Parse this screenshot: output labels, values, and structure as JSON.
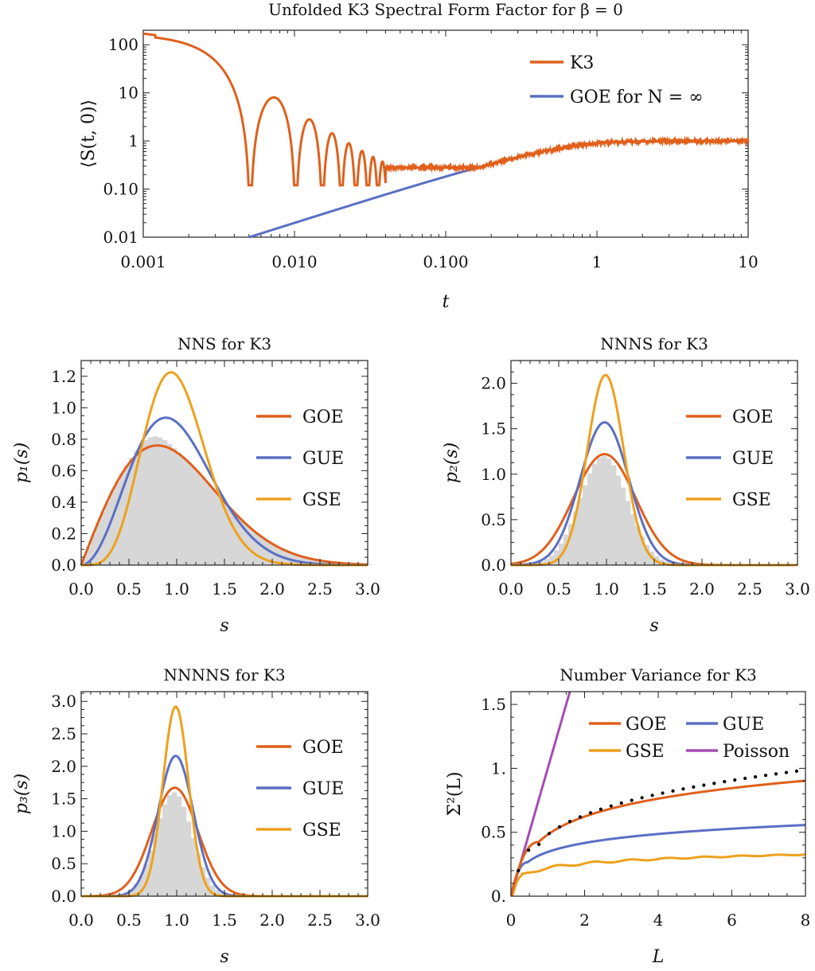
{
  "colors": {
    "orange": "#e0601c",
    "blue": "#5b6fc4",
    "gold": "#eda11c",
    "purple": "#a64cb4",
    "hist": "#d7d7d7",
    "dots": "#000000"
  },
  "chart_data": [
    {
      "id": "sff",
      "type": "line",
      "title": "Unfolded K3 Spectral Form Factor for β = 0",
      "xlabel": "t",
      "ylabel": "⟨S(t, 0)⟩",
      "xscale": "log",
      "yscale": "log",
      "xlim": [
        0.001,
        10
      ],
      "ylim": [
        0.01,
        200
      ],
      "xticks": [
        0.001,
        0.01,
        0.1,
        1,
        10
      ],
      "xtick_labels": [
        "0.001",
        "0.010",
        "0.100",
        "1",
        "10"
      ],
      "yticks": [
        0.01,
        0.1,
        1,
        10,
        100
      ],
      "ytick_labels": [
        "0.01",
        "0.10",
        "1",
        "10",
        "100"
      ],
      "legend_position": "top-right",
      "series": [
        {
          "name": "K3",
          "color": "#e0601c",
          "description": "decays from ~170 at t=0.001 with oscillation dips (0.005, 0.01, 0.015, 0.02, ...), reaches ~0.28 near t≈0.08 then follows GOE ramp and noisy plateau ≈1",
          "points": [
            [
              0.001,
              170
            ],
            [
              0.002,
              130
            ],
            [
              0.003,
              40
            ],
            [
              0.004,
              5
            ],
            [
              0.005,
              0.23
            ],
            [
              0.006,
              5
            ],
            [
              0.0072,
              9.5
            ],
            [
              0.009,
              5
            ],
            [
              0.0103,
              0.2
            ],
            [
              0.012,
              3
            ],
            [
              0.0135,
              4.5
            ],
            [
              0.015,
              2
            ],
            [
              0.0155,
              0.25
            ],
            [
              0.0175,
              2
            ],
            [
              0.0205,
              0.13
            ],
            [
              0.1,
              0.3
            ],
            [
              0.2,
              0.35
            ],
            [
              0.5,
              0.6
            ],
            [
              1,
              0.9
            ],
            [
              10,
              1.0
            ]
          ]
        },
        {
          "name": "GOE for N = ∞",
          "color": "#5b6fc4",
          "description": "GOE ramp-plateau form factor, starting at 0.01 near t=0.005",
          "points": [
            [
              0.005,
              0.01
            ],
            [
              0.01,
              0.02
            ],
            [
              0.05,
              0.09
            ],
            [
              0.1,
              0.17
            ],
            [
              0.3,
              0.42
            ],
            [
              0.6,
              0.7
            ],
            [
              1,
              0.87
            ],
            [
              2,
              0.95
            ],
            [
              10,
              1.0
            ]
          ]
        }
      ]
    },
    {
      "id": "nns",
      "type": "line",
      "title": "NNS for K3",
      "xlabel": "s",
      "ylabel": "p₁(s)",
      "xlim": [
        0,
        3
      ],
      "ylim": [
        0,
        1.3
      ],
      "xticks": [
        0,
        0.5,
        1,
        1.5,
        2,
        2.5,
        3
      ],
      "xtick_labels": [
        "0.0",
        "0.5",
        "1.0",
        "1.5",
        "2.0",
        "2.5",
        "3.0"
      ],
      "yticks": [
        0,
        0.2,
        0.4,
        0.6,
        0.8,
        1.0,
        1.2
      ],
      "ytick_labels": [
        "0.0",
        "0.2",
        "0.4",
        "0.6",
        "0.8",
        "1.0",
        "1.2"
      ],
      "legend_position": "right",
      "series": [
        {
          "name": "GOE",
          "color": "#e0601c",
          "values_at": "Wigner surmise β=1",
          "peak": [
            0.8,
            0.76
          ]
        },
        {
          "name": "GUE",
          "color": "#5b6fc4",
          "values_at": "Wigner surmise β=2",
          "peak": [
            0.89,
            0.94
          ]
        },
        {
          "name": "GSE",
          "color": "#eda11c",
          "values_at": "Wigner surmise β=4",
          "peak": [
            0.94,
            1.23
          ]
        }
      ],
      "histogram": {
        "color": "#d7d7d7",
        "description": "K3 level-spacing histogram, close to GOE"
      }
    },
    {
      "id": "nnns",
      "type": "line",
      "title": "NNNS for K3",
      "xlabel": "s",
      "ylabel": "p₂(s)",
      "xlim": [
        0,
        3
      ],
      "ylim": [
        0,
        2.25
      ],
      "xticks": [
        0,
        0.5,
        1,
        1.5,
        2,
        2.5,
        3
      ],
      "xtick_labels": [
        "0.0",
        "0.5",
        "1.0",
        "1.5",
        "2.0",
        "2.5",
        "3.0"
      ],
      "yticks": [
        0,
        0.5,
        1,
        1.5,
        2
      ],
      "ytick_labels": [
        "0.0",
        "0.5",
        "1.0",
        "1.5",
        "2.0"
      ],
      "legend_position": "right",
      "series": [
        {
          "name": "GOE",
          "color": "#e0601c",
          "peak": [
            0.98,
            1.22
          ]
        },
        {
          "name": "GUE",
          "color": "#5b6fc4",
          "peak": [
            0.98,
            1.57
          ]
        },
        {
          "name": "GSE",
          "color": "#eda11c",
          "peak": [
            0.99,
            2.09
          ]
        }
      ],
      "histogram": {
        "color": "#d7d7d7",
        "description": "K3 histogram close to GOE"
      }
    },
    {
      "id": "nnnns",
      "type": "line",
      "title": "NNNNS for K3",
      "xlabel": "s",
      "ylabel": "p₃(s)",
      "xlim": [
        0,
        3
      ],
      "ylim": [
        0,
        3.15
      ],
      "xticks": [
        0,
        0.5,
        1,
        1.5,
        2,
        2.5,
        3
      ],
      "xtick_labels": [
        "0.0",
        "0.5",
        "1.0",
        "1.5",
        "2.0",
        "2.5",
        "3.0"
      ],
      "yticks": [
        0,
        0.5,
        1,
        1.5,
        2,
        2.5,
        3
      ],
      "ytick_labels": [
        "0.0",
        "0.5",
        "1.0",
        "1.5",
        "2.0",
        "2.5",
        "3.0"
      ],
      "legend_position": "right",
      "series": [
        {
          "name": "GOE",
          "color": "#e0601c",
          "peak": [
            0.98,
            1.67
          ]
        },
        {
          "name": "GUE",
          "color": "#5b6fc4",
          "peak": [
            0.99,
            2.16
          ]
        },
        {
          "name": "GSE",
          "color": "#eda11c",
          "peak": [
            0.99,
            2.92
          ]
        }
      ],
      "histogram": {
        "color": "#d7d7d7",
        "description": "K3 histogram close to GOE"
      }
    },
    {
      "id": "numvar",
      "type": "line",
      "title": "Number Variance for K3",
      "xlabel": "L",
      "ylabel": "Σ²(L)",
      "xlim": [
        0,
        8
      ],
      "ylim": [
        0,
        1.6
      ],
      "xticks": [
        0,
        2,
        4,
        6,
        8
      ],
      "xtick_labels": [
        "0",
        "2",
        "4",
        "6",
        "8"
      ],
      "yticks": [
        0,
        0.5,
        1,
        1.5
      ],
      "ytick_labels": [
        "0.",
        "0.5",
        "1.",
        "1.5"
      ],
      "legend_position": "top-right",
      "series": [
        {
          "name": "GOE",
          "color": "#e0601c",
          "values": [
            [
              0.5,
              0.36
            ],
            [
              1,
              0.44
            ],
            [
              2,
              0.58
            ],
            [
              4,
              0.72
            ],
            [
              6,
              0.8
            ],
            [
              8,
              0.86
            ]
          ]
        },
        {
          "name": "GUE",
          "color": "#5b6fc4",
          "values": [
            [
              0.5,
              0.27
            ],
            [
              1,
              0.32
            ],
            [
              2,
              0.39
            ],
            [
              4,
              0.47
            ],
            [
              6,
              0.52
            ],
            [
              8,
              0.55
            ]
          ]
        },
        {
          "name": "GSE",
          "color": "#eda11c",
          "values": [
            [
              0.5,
              0.22
            ],
            [
              1,
              0.23
            ],
            [
              2,
              0.26
            ],
            [
              4,
              0.29
            ],
            [
              6,
              0.31
            ],
            [
              8,
              0.34
            ]
          ]
        },
        {
          "name": "Poisson",
          "color": "#a64cb4",
          "values": [
            [
              0,
              0
            ],
            [
              1.6,
              1.6
            ]
          ]
        }
      ],
      "dotted": {
        "color": "#000000",
        "description": "K3 data points",
        "values": [
          [
            0.5,
            0.33
          ],
          [
            1,
            0.45
          ],
          [
            2,
            0.58
          ],
          [
            3,
            0.67
          ],
          [
            4,
            0.74
          ],
          [
            5,
            0.8
          ],
          [
            6,
            0.85
          ],
          [
            7,
            0.89
          ],
          [
            8,
            0.94
          ]
        ]
      }
    }
  ]
}
